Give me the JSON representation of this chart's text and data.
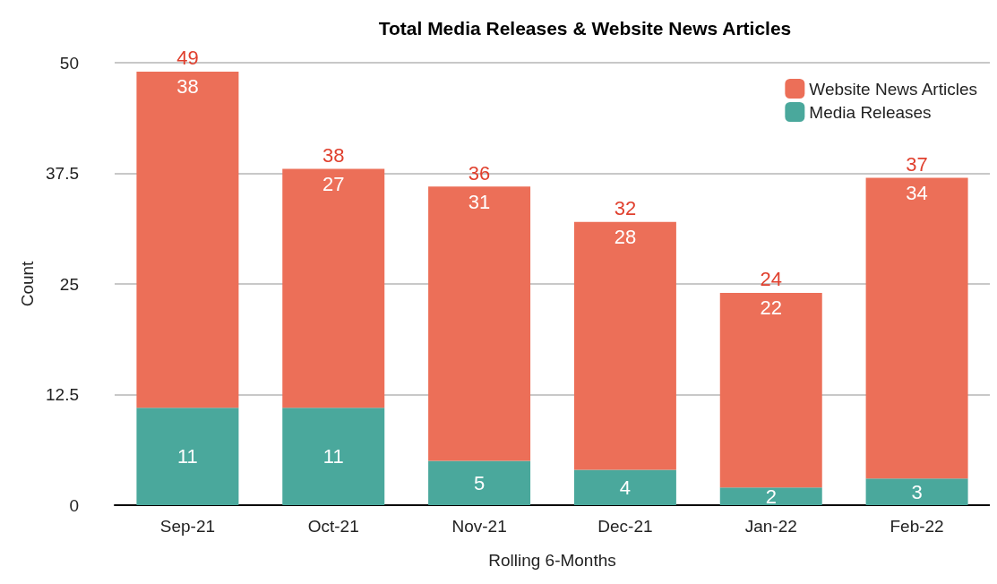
{
  "chart_data": {
    "type": "bar",
    "title": "Total Media Releases & Website News Articles",
    "xlabel": "Rolling 6-Months",
    "ylabel": "Count",
    "categories": [
      "Sep-21",
      "Oct-21",
      "Nov-21",
      "Dec-21",
      "Jan-22",
      "Feb-22"
    ],
    "stacked": true,
    "series": [
      {
        "name": "Media Releases",
        "color": "#4aa89c",
        "values": [
          11,
          11,
          5,
          4,
          2,
          3
        ]
      },
      {
        "name": "Website News Articles",
        "color": "#ec6f58",
        "values": [
          38,
          27,
          31,
          28,
          22,
          34
        ]
      }
    ],
    "totals": [
      "49",
      "38",
      "36",
      "32",
      "24",
      "37"
    ],
    "ylim": [
      0,
      50
    ],
    "yticks": [
      0,
      12.5,
      25,
      37.5,
      50
    ],
    "grid": "y",
    "legend": "top right",
    "data_labels": true
  }
}
